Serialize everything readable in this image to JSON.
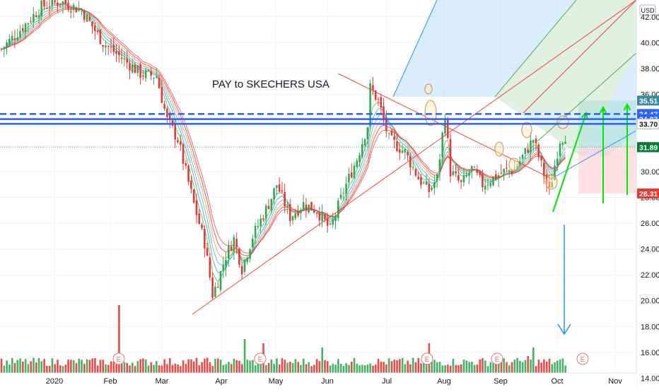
{
  "chart_data": {
    "type": "candlestick",
    "title": "PAY to SKECHERS USA",
    "currency": "USD",
    "y_axis": {
      "range": [
        13.2,
        43.3
      ],
      "scale": "linear",
      "tick_labels": [
        "14.00",
        "16.00",
        "18.00",
        "20.00",
        "22.00",
        "24.00",
        "26.00",
        "28.00",
        "30.00",
        "32.00",
        "34.00",
        "36.00",
        "38.00",
        "40.00",
        "42.00"
      ]
    },
    "x_axis": {
      "tick_labels": [
        "2020",
        "Feb",
        "Mar",
        "Apr",
        "May",
        "Jun",
        "Jul",
        "Aug",
        "Sep",
        "Oct",
        "Nov"
      ]
    },
    "grid": true,
    "price_tags": [
      {
        "label": "35.51",
        "value": 35.51,
        "color": "#3c8aa0"
      },
      {
        "label": "34.47",
        "value": 34.47,
        "color": "#2962ff"
      },
      {
        "label": "34.07",
        "value": 34.07,
        "color": "#2962ff"
      },
      {
        "label": "33.70",
        "value": 33.7,
        "color": "#ffffff"
      },
      {
        "label": "31.91",
        "value": 31.91,
        "color": "#787b86"
      },
      {
        "label": "31.89",
        "value": 31.89,
        "color": "#0a7a3a"
      },
      {
        "label": "28.31",
        "value": 28.31,
        "color": "#e53935"
      }
    ],
    "horizontal_levels": [
      {
        "value": 34.47,
        "style": "dashed",
        "color": "#2962ff"
      },
      {
        "value": 34.07,
        "style": "solid",
        "color": "#2962ff"
      },
      {
        "value": 33.7,
        "style": "solid",
        "color": "#2962ff"
      },
      {
        "value": 31.91,
        "style": "dotted",
        "color": "#4caf50"
      }
    ],
    "earnings_markers": {
      "label": "E",
      "count": 5
    },
    "colors": {
      "up": "#26a69a",
      "up_candle": "#33a853",
      "down": "#ef5350",
      "down_candle": "#e53935",
      "pitchfork_blue": "#bbdefb",
      "pitchfork_green": "#c8e6c9",
      "target_zone": "#b2dfdb",
      "stop_zone": "#ffcdd2",
      "arrow_green": "#00e600",
      "arrow_blue": "#2196f3"
    }
  }
}
